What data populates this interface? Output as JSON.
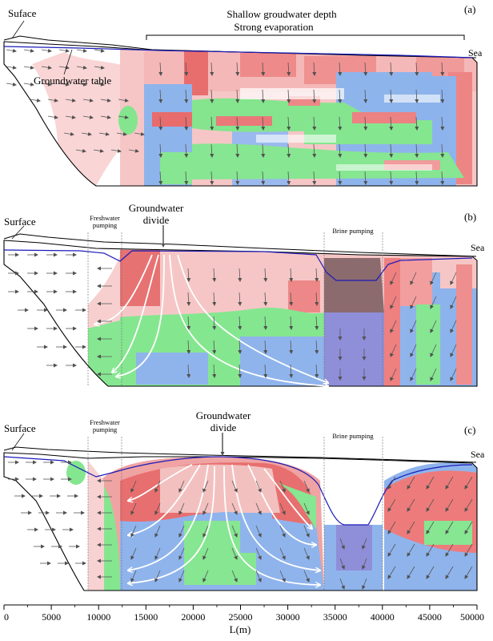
{
  "panels": [
    {
      "id": "a",
      "letter": "(a)",
      "surface": "Suface",
      "water_table": "Groundwater table",
      "evap_line1": "Shallow groudwater depth",
      "evap_line2": "Strong evaporation",
      "sea": "Sea"
    },
    {
      "id": "b",
      "letter": "(b)",
      "surface": "Surface",
      "fresh_line1": "Freshwater",
      "fresh_line2": "pumping",
      "divide_line1": "Groundwater",
      "divide_line2": "divide",
      "brine": "Brine pumping",
      "sea": "Sea"
    },
    {
      "id": "c",
      "letter": "(c)",
      "surface": "Surface",
      "fresh_line1": "Freshwater",
      "fresh_line2": "pumping",
      "divide_line1": "Groundwater",
      "divide_line2": "divide",
      "brine": "Brine pumping",
      "sea": "Sea"
    }
  ],
  "axis": {
    "label": "L(m)",
    "min": 0,
    "max": 50000,
    "ticks": [
      "0",
      "5000",
      "10000",
      "15000",
      "20000",
      "25000",
      "30000",
      "35000",
      "40000",
      "45000",
      "50000"
    ]
  },
  "colors": {
    "pink": "#f7c3c3",
    "red": "#ee7a7a",
    "green": "#83e68d",
    "blue": "#8db3ec",
    "dark": "#8b6a6e",
    "violet": "#8f8ed8",
    "water_table": "#1b1bb8",
    "arrow": "#555555"
  }
}
